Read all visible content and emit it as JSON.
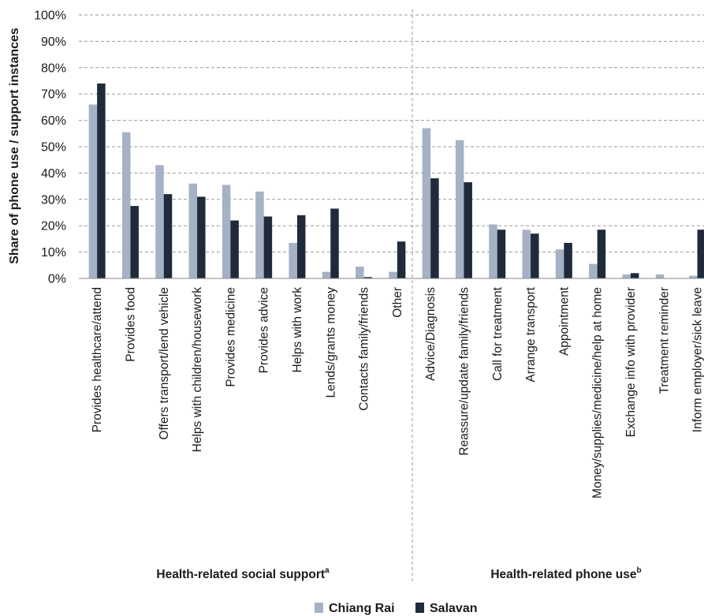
{
  "chart_data": {
    "type": "bar",
    "ylabel": "Share of phone use / support instances",
    "ylim": [
      0,
      100
    ],
    "yticks": [
      "0%",
      "10%",
      "20%",
      "30%",
      "40%",
      "50%",
      "60%",
      "70%",
      "80%",
      "90%",
      "100%"
    ],
    "grid": true,
    "legend_position": "bottom-center",
    "colors": {
      "Chiang Rai": "#a5b1c4",
      "Salavan": "#1f2a3a",
      "grid": "#9a9a9a"
    },
    "groups": [
      {
        "label": "Health-related social support",
        "superscript": "a"
      },
      {
        "label": "Health-related phone use",
        "superscript": "b"
      }
    ],
    "categories": [
      "Provides healthcare/attend",
      "Provides food",
      "Offers transport/lend vehicle",
      "Helps with children/housework",
      "Provides medicine",
      "Provides advice",
      "Helps with work",
      "Lends/grants money",
      "Contacts family/friends",
      "Other",
      "Advice/Diagnosis",
      "Reassure/update family/friends",
      "Call for treatment",
      "Arrange transport",
      "Appointment",
      "Money/supplies/medicine/help at home",
      "Exchange info with provider",
      "Treatment reminder",
      "Inform employer/sick leave"
    ],
    "series": [
      {
        "name": "Chiang Rai",
        "values": [
          66,
          55.5,
          43,
          36,
          35.5,
          33,
          13.5,
          2.5,
          4.5,
          2.5,
          57,
          52.5,
          20.5,
          18.5,
          11,
          5.5,
          1.5,
          1.5,
          1
        ]
      },
      {
        "name": "Salavan",
        "values": [
          74,
          27.5,
          32,
          31,
          22,
          23.5,
          24,
          26.5,
          0.5,
          14,
          38,
          36.5,
          18.5,
          17,
          13.5,
          18.5,
          2,
          0,
          18.5
        ]
      }
    ]
  }
}
